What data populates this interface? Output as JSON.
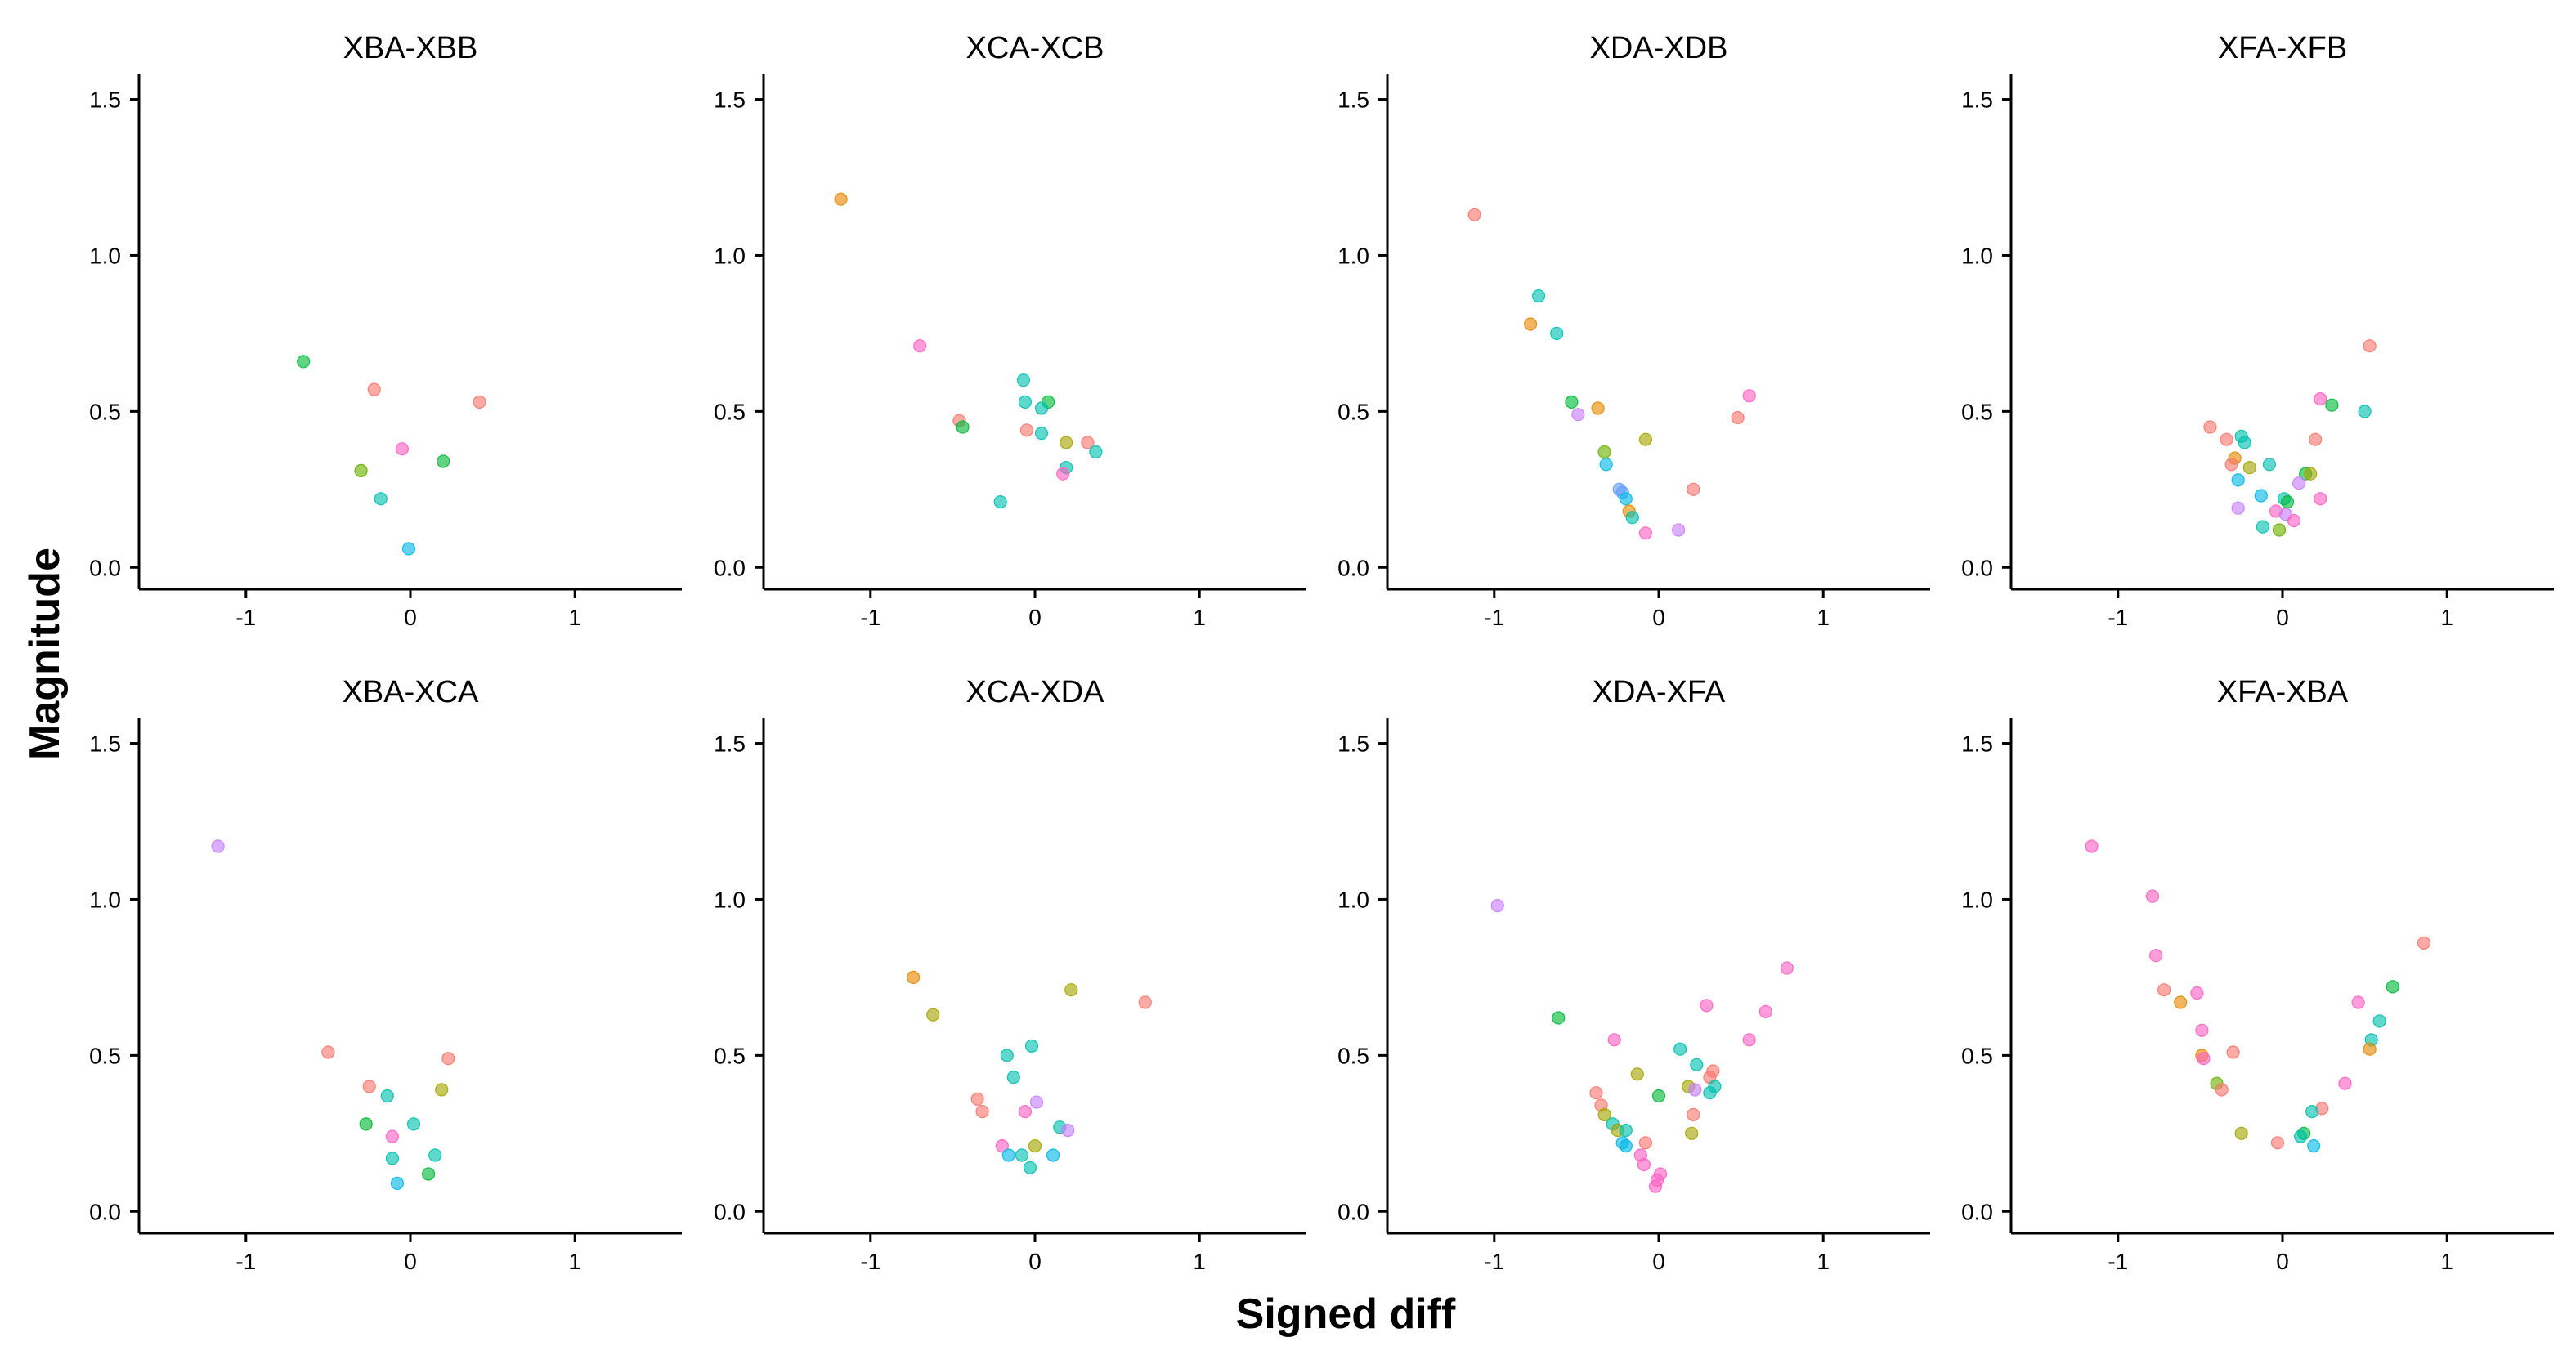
{
  "chart_data": {
    "type": "scatter",
    "xlabel": "Signed diff",
    "ylabel": "Magnitude",
    "xlim": [
      -1.65,
      1.65
    ],
    "ylim": [
      -0.07,
      1.58
    ],
    "x_ticks": [
      -1,
      0,
      1
    ],
    "y_ticks": [
      0.0,
      0.5,
      1.0,
      1.5
    ],
    "x_tick_labels": [
      "-1",
      "0",
      "1"
    ],
    "y_tick_labels": [
      "0.0",
      "0.5",
      "1.0",
      "1.5"
    ],
    "grid": false,
    "legend": "none",
    "palette": [
      "#F8766D",
      "#E58700",
      "#A3A500",
      "#6BB100",
      "#00BA38",
      "#00C0AF",
      "#00B8E7",
      "#619CFF",
      "#C77CFF",
      "#FF61C3"
    ],
    "facets": [
      {
        "title": "XBA-XBB",
        "points": [
          {
            "x": -0.65,
            "y": 0.66,
            "c": 4
          },
          {
            "x": -0.22,
            "y": 0.57,
            "c": 0
          },
          {
            "x": 0.42,
            "y": 0.53,
            "c": 0
          },
          {
            "x": -0.05,
            "y": 0.38,
            "c": 9
          },
          {
            "x": 0.2,
            "y": 0.34,
            "c": 4
          },
          {
            "x": -0.3,
            "y": 0.31,
            "c": 3
          },
          {
            "x": -0.18,
            "y": 0.22,
            "c": 5
          },
          {
            "x": -0.01,
            "y": 0.06,
            "c": 6
          }
        ]
      },
      {
        "title": "XCA-XCB",
        "points": [
          {
            "x": -1.18,
            "y": 1.18,
            "c": 1
          },
          {
            "x": -0.7,
            "y": 0.71,
            "c": 9
          },
          {
            "x": -0.46,
            "y": 0.47,
            "c": 0
          },
          {
            "x": -0.44,
            "y": 0.45,
            "c": 4
          },
          {
            "x": -0.07,
            "y": 0.6,
            "c": 5
          },
          {
            "x": -0.06,
            "y": 0.53,
            "c": 5
          },
          {
            "x": 0.08,
            "y": 0.53,
            "c": 4
          },
          {
            "x": 0.04,
            "y": 0.51,
            "c": 5
          },
          {
            "x": -0.05,
            "y": 0.44,
            "c": 0
          },
          {
            "x": 0.04,
            "y": 0.43,
            "c": 5
          },
          {
            "x": 0.19,
            "y": 0.4,
            "c": 2
          },
          {
            "x": 0.32,
            "y": 0.4,
            "c": 0
          },
          {
            "x": 0.37,
            "y": 0.37,
            "c": 5
          },
          {
            "x": -0.21,
            "y": 0.21,
            "c": 5
          },
          {
            "x": 0.19,
            "y": 0.32,
            "c": 5
          },
          {
            "x": 0.17,
            "y": 0.3,
            "c": 9
          }
        ]
      },
      {
        "title": "XDA-XDB",
        "points": [
          {
            "x": -1.12,
            "y": 1.13,
            "c": 0
          },
          {
            "x": -0.73,
            "y": 0.87,
            "c": 5
          },
          {
            "x": -0.78,
            "y": 0.78,
            "c": 1
          },
          {
            "x": -0.62,
            "y": 0.75,
            "c": 5
          },
          {
            "x": -0.53,
            "y": 0.53,
            "c": 4
          },
          {
            "x": -0.37,
            "y": 0.51,
            "c": 1
          },
          {
            "x": -0.49,
            "y": 0.49,
            "c": 8
          },
          {
            "x": 0.55,
            "y": 0.55,
            "c": 9
          },
          {
            "x": 0.48,
            "y": 0.48,
            "c": 0
          },
          {
            "x": -0.08,
            "y": 0.41,
            "c": 2
          },
          {
            "x": -0.33,
            "y": 0.37,
            "c": 3
          },
          {
            "x": -0.32,
            "y": 0.33,
            "c": 6
          },
          {
            "x": -0.24,
            "y": 0.25,
            "c": 7
          },
          {
            "x": -0.22,
            "y": 0.24,
            "c": 7
          },
          {
            "x": -0.2,
            "y": 0.22,
            "c": 6
          },
          {
            "x": 0.21,
            "y": 0.25,
            "c": 0
          },
          {
            "x": -0.18,
            "y": 0.18,
            "c": 1
          },
          {
            "x": -0.16,
            "y": 0.16,
            "c": 5
          },
          {
            "x": 0.12,
            "y": 0.12,
            "c": 8
          },
          {
            "x": -0.08,
            "y": 0.11,
            "c": 9
          }
        ]
      },
      {
        "title": "XFA-XFB",
        "points": [
          {
            "x": 0.53,
            "y": 0.71,
            "c": 0
          },
          {
            "x": 0.23,
            "y": 0.54,
            "c": 9
          },
          {
            "x": 0.3,
            "y": 0.52,
            "c": 4
          },
          {
            "x": 0.5,
            "y": 0.5,
            "c": 5
          },
          {
            "x": -0.44,
            "y": 0.45,
            "c": 0
          },
          {
            "x": -0.25,
            "y": 0.42,
            "c": 5
          },
          {
            "x": -0.34,
            "y": 0.41,
            "c": 0
          },
          {
            "x": 0.2,
            "y": 0.41,
            "c": 0
          },
          {
            "x": -0.23,
            "y": 0.4,
            "c": 5
          },
          {
            "x": -0.29,
            "y": 0.35,
            "c": 1
          },
          {
            "x": -0.31,
            "y": 0.33,
            "c": 0
          },
          {
            "x": -0.08,
            "y": 0.33,
            "c": 5
          },
          {
            "x": -0.2,
            "y": 0.32,
            "c": 2
          },
          {
            "x": 0.14,
            "y": 0.3,
            "c": 4
          },
          {
            "x": 0.17,
            "y": 0.3,
            "c": 2
          },
          {
            "x": -0.27,
            "y": 0.28,
            "c": 6
          },
          {
            "x": 0.1,
            "y": 0.27,
            "c": 8
          },
          {
            "x": -0.13,
            "y": 0.23,
            "c": 6
          },
          {
            "x": 0.01,
            "y": 0.22,
            "c": 5
          },
          {
            "x": 0.03,
            "y": 0.21,
            "c": 4
          },
          {
            "x": 0.23,
            "y": 0.22,
            "c": 9
          },
          {
            "x": -0.27,
            "y": 0.19,
            "c": 8
          },
          {
            "x": -0.04,
            "y": 0.18,
            "c": 9
          },
          {
            "x": 0.02,
            "y": 0.17,
            "c": 8
          },
          {
            "x": 0.07,
            "y": 0.15,
            "c": 9
          },
          {
            "x": -0.12,
            "y": 0.13,
            "c": 5
          },
          {
            "x": -0.02,
            "y": 0.12,
            "c": 3
          }
        ]
      },
      {
        "title": "XBA-XCA",
        "points": [
          {
            "x": -1.17,
            "y": 1.17,
            "c": 8
          },
          {
            "x": -0.5,
            "y": 0.51,
            "c": 0
          },
          {
            "x": 0.23,
            "y": 0.49,
            "c": 0
          },
          {
            "x": -0.25,
            "y": 0.4,
            "c": 0
          },
          {
            "x": -0.14,
            "y": 0.37,
            "c": 5
          },
          {
            "x": 0.19,
            "y": 0.39,
            "c": 2
          },
          {
            "x": -0.27,
            "y": 0.28,
            "c": 4
          },
          {
            "x": 0.02,
            "y": 0.28,
            "c": 5
          },
          {
            "x": -0.11,
            "y": 0.24,
            "c": 9
          },
          {
            "x": -0.11,
            "y": 0.17,
            "c": 5
          },
          {
            "x": 0.15,
            "y": 0.18,
            "c": 5
          },
          {
            "x": 0.11,
            "y": 0.12,
            "c": 4
          },
          {
            "x": -0.08,
            "y": 0.09,
            "c": 6
          }
        ]
      },
      {
        "title": "XCA-XDA",
        "points": [
          {
            "x": -0.74,
            "y": 0.75,
            "c": 1
          },
          {
            "x": -0.62,
            "y": 0.63,
            "c": 2
          },
          {
            "x": 0.22,
            "y": 0.71,
            "c": 2
          },
          {
            "x": 0.67,
            "y": 0.67,
            "c": 0
          },
          {
            "x": -0.02,
            "y": 0.53,
            "c": 5
          },
          {
            "x": -0.17,
            "y": 0.5,
            "c": 5
          },
          {
            "x": -0.13,
            "y": 0.43,
            "c": 5
          },
          {
            "x": -0.35,
            "y": 0.36,
            "c": 0
          },
          {
            "x": 0.01,
            "y": 0.35,
            "c": 8
          },
          {
            "x": -0.32,
            "y": 0.32,
            "c": 0
          },
          {
            "x": -0.06,
            "y": 0.32,
            "c": 9
          },
          {
            "x": 0.15,
            "y": 0.27,
            "c": 5
          },
          {
            "x": 0.2,
            "y": 0.26,
            "c": 8
          },
          {
            "x": -0.2,
            "y": 0.21,
            "c": 9
          },
          {
            "x": 0.0,
            "y": 0.21,
            "c": 2
          },
          {
            "x": -0.16,
            "y": 0.18,
            "c": 6
          },
          {
            "x": -0.08,
            "y": 0.18,
            "c": 5
          },
          {
            "x": 0.11,
            "y": 0.18,
            "c": 6
          },
          {
            "x": -0.03,
            "y": 0.14,
            "c": 5
          }
        ]
      },
      {
        "title": "XDA-XFA",
        "points": [
          {
            "x": -0.98,
            "y": 0.98,
            "c": 8
          },
          {
            "x": 0.78,
            "y": 0.78,
            "c": 9
          },
          {
            "x": 0.29,
            "y": 0.66,
            "c": 9
          },
          {
            "x": 0.65,
            "y": 0.64,
            "c": 9
          },
          {
            "x": -0.61,
            "y": 0.62,
            "c": 4
          },
          {
            "x": -0.27,
            "y": 0.55,
            "c": 9
          },
          {
            "x": 0.55,
            "y": 0.55,
            "c": 9
          },
          {
            "x": 0.13,
            "y": 0.52,
            "c": 5
          },
          {
            "x": 0.23,
            "y": 0.47,
            "c": 5
          },
          {
            "x": 0.31,
            "y": 0.43,
            "c": 0
          },
          {
            "x": -0.13,
            "y": 0.44,
            "c": 2
          },
          {
            "x": 0.33,
            "y": 0.45,
            "c": 0
          },
          {
            "x": 0.34,
            "y": 0.4,
            "c": 5
          },
          {
            "x": 0.31,
            "y": 0.38,
            "c": 5
          },
          {
            "x": -0.38,
            "y": 0.38,
            "c": 0
          },
          {
            "x": 0.18,
            "y": 0.4,
            "c": 2
          },
          {
            "x": 0.22,
            "y": 0.39,
            "c": 8
          },
          {
            "x": 0.0,
            "y": 0.37,
            "c": 4
          },
          {
            "x": -0.35,
            "y": 0.34,
            "c": 0
          },
          {
            "x": -0.33,
            "y": 0.31,
            "c": 2
          },
          {
            "x": 0.21,
            "y": 0.31,
            "c": 0
          },
          {
            "x": -0.28,
            "y": 0.28,
            "c": 5
          },
          {
            "x": -0.25,
            "y": 0.26,
            "c": 2
          },
          {
            "x": -0.2,
            "y": 0.26,
            "c": 5
          },
          {
            "x": 0.2,
            "y": 0.25,
            "c": 2
          },
          {
            "x": -0.22,
            "y": 0.22,
            "c": 6
          },
          {
            "x": -0.2,
            "y": 0.21,
            "c": 6
          },
          {
            "x": -0.08,
            "y": 0.22,
            "c": 0
          },
          {
            "x": -0.11,
            "y": 0.18,
            "c": 9
          },
          {
            "x": -0.09,
            "y": 0.15,
            "c": 9
          },
          {
            "x": 0.01,
            "y": 0.12,
            "c": 9
          },
          {
            "x": -0.01,
            "y": 0.1,
            "c": 9
          },
          {
            "x": -0.02,
            "y": 0.08,
            "c": 9
          }
        ]
      },
      {
        "title": "XFA-XBA",
        "points": [
          {
            "x": -1.16,
            "y": 1.17,
            "c": 9
          },
          {
            "x": -0.79,
            "y": 1.01,
            "c": 9
          },
          {
            "x": -0.77,
            "y": 0.82,
            "c": 9
          },
          {
            "x": 0.86,
            "y": 0.86,
            "c": 0
          },
          {
            "x": 0.67,
            "y": 0.72,
            "c": 4
          },
          {
            "x": -0.72,
            "y": 0.71,
            "c": 0
          },
          {
            "x": -0.62,
            "y": 0.67,
            "c": 1
          },
          {
            "x": -0.52,
            "y": 0.7,
            "c": 9
          },
          {
            "x": 0.46,
            "y": 0.67,
            "c": 9
          },
          {
            "x": 0.59,
            "y": 0.61,
            "c": 5
          },
          {
            "x": -0.49,
            "y": 0.58,
            "c": 9
          },
          {
            "x": 0.54,
            "y": 0.55,
            "c": 5
          },
          {
            "x": 0.53,
            "y": 0.52,
            "c": 1
          },
          {
            "x": -0.49,
            "y": 0.5,
            "c": 1
          },
          {
            "x": -0.48,
            "y": 0.49,
            "c": 9
          },
          {
            "x": -0.3,
            "y": 0.51,
            "c": 0
          },
          {
            "x": 0.38,
            "y": 0.41,
            "c": 9
          },
          {
            "x": -0.4,
            "y": 0.41,
            "c": 3
          },
          {
            "x": -0.37,
            "y": 0.39,
            "c": 0
          },
          {
            "x": 0.24,
            "y": 0.33,
            "c": 0
          },
          {
            "x": 0.18,
            "y": 0.32,
            "c": 5
          },
          {
            "x": -0.25,
            "y": 0.25,
            "c": 2
          },
          {
            "x": 0.13,
            "y": 0.25,
            "c": 4
          },
          {
            "x": 0.11,
            "y": 0.24,
            "c": 5
          },
          {
            "x": -0.03,
            "y": 0.22,
            "c": 0
          },
          {
            "x": 0.19,
            "y": 0.21,
            "c": 6
          }
        ]
      }
    ]
  }
}
